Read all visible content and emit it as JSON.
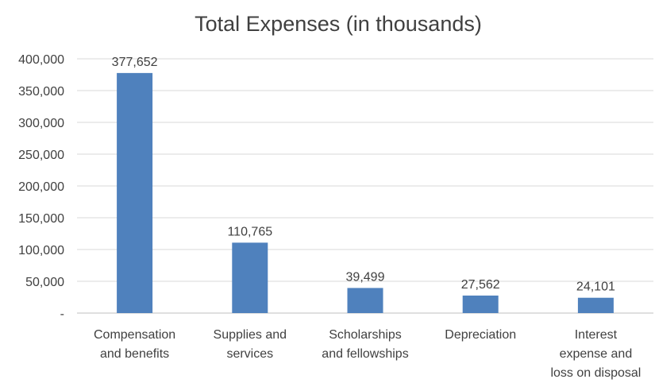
{
  "chart_data": {
    "type": "bar",
    "title": "Total Expenses (in thousands)",
    "xlabel": "",
    "ylabel": "",
    "categories": [
      [
        "Compensation",
        "and benefits"
      ],
      [
        "Supplies and",
        "services"
      ],
      [
        "Scholarships",
        "and fellowships"
      ],
      [
        "Depreciation"
      ],
      [
        "Interest",
        "expense and",
        "loss on disposal"
      ]
    ],
    "values": [
      377652,
      110765,
      39499,
      27562,
      24101
    ],
    "value_labels": [
      "377,652",
      "110,765",
      "39,499",
      "27,562",
      "24,101"
    ],
    "ylim": [
      0,
      400000
    ],
    "yticks": [
      0,
      50000,
      100000,
      150000,
      200000,
      250000,
      300000,
      350000,
      400000
    ],
    "ytick_labels": [
      "-",
      "50,000",
      "100,000",
      "150,000",
      "200,000",
      "250,000",
      "300,000",
      "350,000",
      "400,000"
    ],
    "grid": true,
    "legend": "none",
    "colors": {
      "bar": "#4f81bd",
      "grid": "#d9d9d9",
      "text": "#404040",
      "axis": "#bfbfbf"
    }
  }
}
